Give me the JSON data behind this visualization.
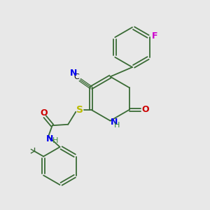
{
  "bg_color": "#e8e8e8",
  "bond_color": "#3a6b35",
  "atom_colors": {
    "N": "#0000ee",
    "O": "#cc0000",
    "S": "#bbbb00",
    "F": "#cc00cc",
    "C_label": "#000000",
    "H": "#3a8a3a"
  },
  "figsize": [
    3.0,
    3.0
  ],
  "dpi": 100
}
